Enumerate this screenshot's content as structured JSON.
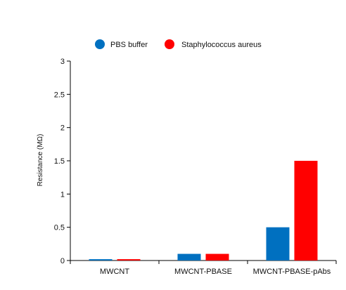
{
  "chart_data": {
    "type": "bar",
    "categories": [
      "MWCNT",
      "MWCNT-PBASE",
      "MWCNT-PBASE-pAbs"
    ],
    "series": [
      {
        "name": "PBS buffer",
        "values": [
          0.02,
          0.1,
          0.5
        ],
        "color": "#0070c0"
      },
      {
        "name": "Staphylococcus aureus",
        "values": [
          0.02,
          0.1,
          1.5
        ],
        "color": "#ff0000"
      }
    ],
    "title": "",
    "xlabel": "",
    "ylabel": "Resistance (MΩ)",
    "ylim": [
      0,
      3
    ],
    "yticks": [
      {
        "value": 0,
        "label": "0"
      },
      {
        "value": 0.5,
        "label": "0.5"
      },
      {
        "value": 1,
        "label": "1"
      },
      {
        "value": 1.5,
        "label": "1.5"
      },
      {
        "value": 2,
        "label": "2"
      },
      {
        "value": 2.5,
        "label": "2.5"
      },
      {
        "value": 3,
        "label": "3"
      }
    ],
    "grid": false,
    "legend_position": "top-center"
  }
}
